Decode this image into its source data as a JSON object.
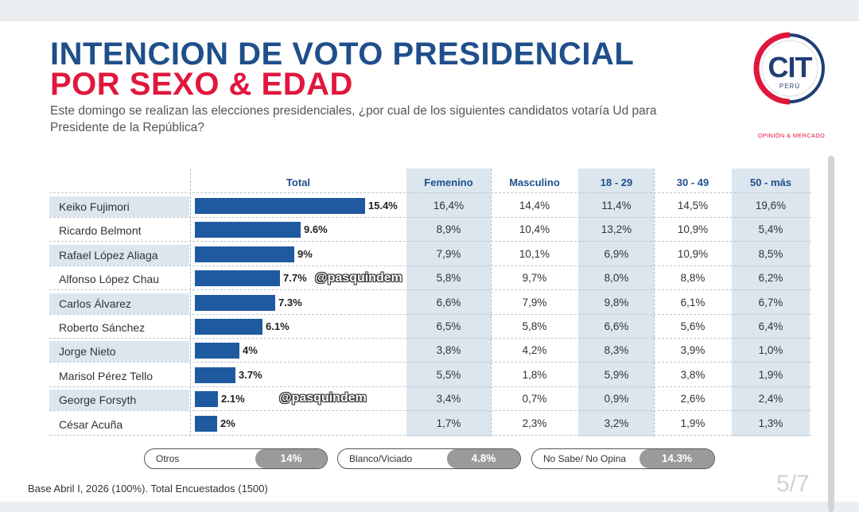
{
  "title_line1": "INTENCION DE VOTO PRESIDENCIAL",
  "title_line2": "POR SEXO & EDAD",
  "subtitle": "Este domingo se realizan las elecciones presidenciales, ¿por cual de los siguientes candidatos votaría Ud para Presidente de la República?",
  "logo": {
    "text": "CIT",
    "country": "PERÚ",
    "tagline": "OPINIÓN & MERCADO"
  },
  "colors": {
    "title_blue": "#1f4f8b",
    "title_red": "#e0173d",
    "bar": "#1f5aa0",
    "shade": "#dce6ef"
  },
  "chart_data": {
    "type": "bar",
    "orientation": "horizontal",
    "categories": [
      "Keiko Fujimori",
      "Ricardo Belmont",
      "Rafael López Aliaga",
      "Alfonso López Chau",
      "Carlos Álvarez",
      "Roberto Sánchez",
      "Jorge Nieto",
      "Marisol Pérez Tello",
      "George Forsyth",
      "César Acuña"
    ],
    "values": [
      15.4,
      9.6,
      9,
      7.7,
      7.3,
      6.1,
      4,
      3.7,
      2.1,
      2
    ],
    "value_labels": [
      "15.4%",
      "9.6%",
      "9%",
      "7.7%",
      "7.3%",
      "6.1%",
      "4%",
      "3.7%",
      "2.1%",
      "2%"
    ],
    "series_name": "Total",
    "table_columns": [
      "Femenino",
      "Masculino",
      "18 - 29",
      "30 - 49",
      "50 - más"
    ],
    "table_values": [
      [
        "16,4%",
        "14,4%",
        "11,4%",
        "14,5%",
        "19,6%"
      ],
      [
        "8,9%",
        "10,4%",
        "13,2%",
        "10,9%",
        "5,4%"
      ],
      [
        "7,9%",
        "10,1%",
        "6,9%",
        "10,9%",
        "8,5%"
      ],
      [
        "5,8%",
        "9,7%",
        "8,0%",
        "8,8%",
        "6,2%"
      ],
      [
        "6,6%",
        "7,9%",
        "9,8%",
        "6,1%",
        "6,7%"
      ],
      [
        "6,5%",
        "5,8%",
        "6,6%",
        "5,6%",
        "6,4%"
      ],
      [
        "3,8%",
        "4,2%",
        "8,3%",
        "3,9%",
        "1,0%"
      ],
      [
        "5,5%",
        "1,8%",
        "5,9%",
        "3,8%",
        "1,9%"
      ],
      [
        "3,4%",
        "0,7%",
        "0,9%",
        "2,6%",
        "2,4%"
      ],
      [
        "1,7%",
        "2,3%",
        "3,2%",
        "1,9%",
        "1,3%"
      ]
    ],
    "xlim": [
      0,
      16
    ]
  },
  "watermarks": [
    "@pasquindem",
    "@pasquindem"
  ],
  "summary_pills": [
    {
      "label": "Otros",
      "value": "14%"
    },
    {
      "label": "Blanco/Viciado",
      "value": "4.8%"
    },
    {
      "label": "No Sabe/ No Opina",
      "value": "14.3%"
    }
  ],
  "footer": "Base Abril I, 2026  (100%). Total Encuestados (1500)",
  "page_number": "5/7"
}
